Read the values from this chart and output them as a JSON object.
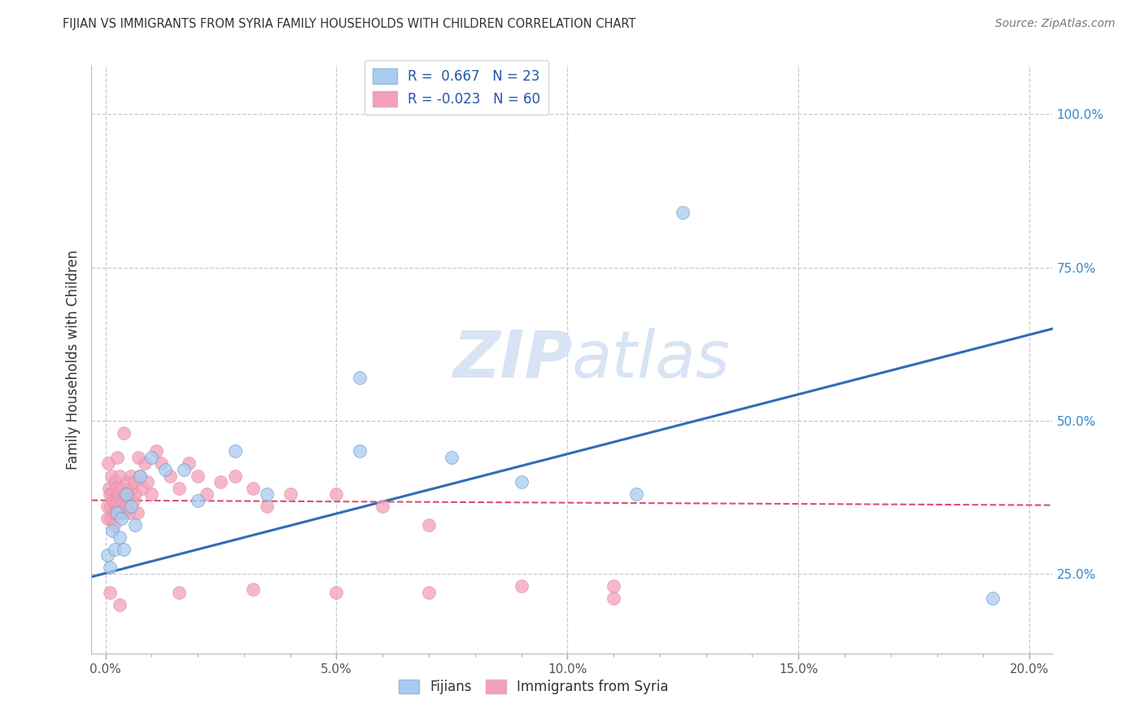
{
  "title": "FIJIAN VS IMMIGRANTS FROM SYRIA FAMILY HOUSEHOLDS WITH CHILDREN CORRELATION CHART",
  "source": "Source: ZipAtlas.com",
  "ylabel_left": "Family Households with Children",
  "x_tick_labels": [
    "0.0%",
    "",
    "",
    "",
    "",
    "5.0%",
    "",
    "",
    "",
    "",
    "10.0%",
    "",
    "",
    "",
    "",
    "15.0%",
    "",
    "",
    "",
    "",
    "20.0%"
  ],
  "x_tick_positions": [
    0.0,
    1.0,
    2.0,
    3.0,
    4.0,
    5.0,
    6.0,
    7.0,
    8.0,
    9.0,
    10.0,
    11.0,
    12.0,
    13.0,
    14.0,
    15.0,
    16.0,
    17.0,
    18.0,
    19.0,
    20.0
  ],
  "x_major_ticks": [
    0.0,
    5.0,
    10.0,
    15.0,
    20.0
  ],
  "x_major_labels": [
    "0.0%",
    "5.0%",
    "10.0%",
    "15.0%",
    "20.0%"
  ],
  "y_tick_labels_right": [
    "25.0%",
    "50.0%",
    "75.0%",
    "100.0%"
  ],
  "y_tick_positions_right": [
    25.0,
    50.0,
    75.0,
    100.0
  ],
  "xlim": [
    -0.3,
    20.5
  ],
  "ylim": [
    12.0,
    108.0
  ],
  "legend_labels": [
    "R =  0.667   N = 23",
    "R = -0.023   N = 60"
  ],
  "legend_label_fijians": "Fijians",
  "legend_label_syria": "Immigrants from Syria",
  "fijian_color": "#A8CCF0",
  "syria_color": "#F4A0B8",
  "fijian_line_color": "#2E6DB4",
  "syria_line_color": "#D85070",
  "background_color": "#FFFFFF",
  "grid_color": "#C8C8D8",
  "title_color": "#333333",
  "source_color": "#777777",
  "axis_label_color": "#333333",
  "tick_label_color_right": "#3388CC",
  "watermark_color": "#D8E4F4",
  "fijian_x": [
    0.05,
    0.1,
    0.15,
    0.2,
    0.25,
    0.3,
    0.35,
    0.4,
    0.45,
    0.55,
    0.65,
    0.75,
    1.0,
    1.3,
    1.7,
    2.0,
    2.8,
    3.5,
    5.5,
    7.5,
    9.0,
    11.5,
    19.2
  ],
  "fijian_y": [
    28.0,
    26.0,
    32.0,
    29.0,
    35.0,
    31.0,
    34.0,
    29.0,
    38.0,
    36.0,
    33.0,
    41.0,
    44.0,
    42.0,
    42.0,
    37.0,
    45.0,
    38.0,
    45.0,
    44.0,
    40.0,
    38.0,
    21.0
  ],
  "fijian_outlier_x": [
    12.5
  ],
  "fijian_outlier_y": [
    84.0
  ],
  "fijian_mid_x": [
    5.5
  ],
  "fijian_mid_y": [
    57.0
  ],
  "fijian_trendline_x0": -0.3,
  "fijian_trendline_y0": 24.5,
  "fijian_trendline_x1": 20.5,
  "fijian_trendline_y1": 65.0,
  "syria_x": [
    0.04,
    0.05,
    0.07,
    0.08,
    0.1,
    0.11,
    0.12,
    0.14,
    0.15,
    0.17,
    0.18,
    0.19,
    0.2,
    0.21,
    0.22,
    0.24,
    0.25,
    0.26,
    0.28,
    0.3,
    0.31,
    0.33,
    0.35,
    0.37,
    0.39,
    0.4,
    0.42,
    0.45,
    0.47,
    0.5,
    0.52,
    0.55,
    0.57,
    0.6,
    0.63,
    0.65,
    0.7,
    0.72,
    0.75,
    0.8,
    0.85,
    0.9,
    1.0,
    1.1,
    1.2,
    1.4,
    1.6,
    1.8,
    2.0,
    2.2,
    2.5,
    2.8,
    3.2,
    3.5,
    4.0,
    5.0,
    6.0,
    7.0,
    9.0,
    11.0
  ],
  "syria_y": [
    36.0,
    34.0,
    43.0,
    39.0,
    38.0,
    36.0,
    34.0,
    41.0,
    38.0,
    37.0,
    35.0,
    33.0,
    40.0,
    37.0,
    35.0,
    39.0,
    37.0,
    44.0,
    38.0,
    41.0,
    37.0,
    35.0,
    39.0,
    37.0,
    35.0,
    48.0,
    38.0,
    36.0,
    40.0,
    38.0,
    35.0,
    41.0,
    39.0,
    37.0,
    40.0,
    38.0,
    35.0,
    44.0,
    41.0,
    39.0,
    43.0,
    40.0,
    38.0,
    45.0,
    43.0,
    41.0,
    39.0,
    43.0,
    41.0,
    38.0,
    40.0,
    41.0,
    39.0,
    36.0,
    38.0,
    38.0,
    36.0,
    33.0,
    23.0,
    23.0
  ],
  "syria_low_x": [
    0.1,
    0.3,
    1.6,
    3.2,
    5.0,
    7.0,
    11.0
  ],
  "syria_low_y": [
    22.0,
    20.0,
    22.0,
    22.5,
    22.0,
    22.0,
    21.0
  ],
  "syria_trendline_x0": -0.3,
  "syria_trendline_y0": 37.0,
  "syria_trendline_x1": 20.5,
  "syria_trendline_y1": 36.2
}
